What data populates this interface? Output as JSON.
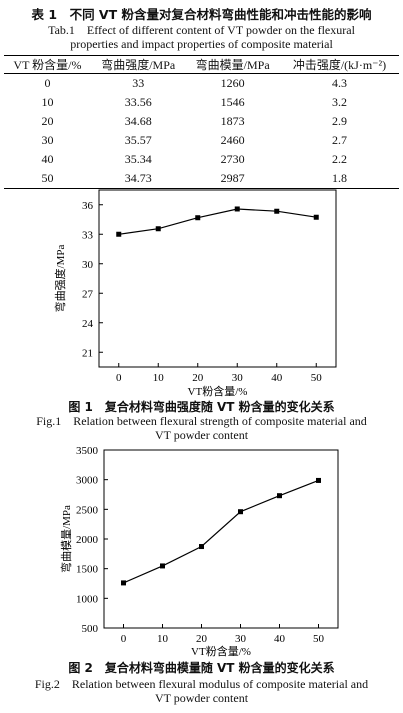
{
  "table": {
    "caption_cn": "表 1　不同 VT 粉含量对复合材料弯曲性能和冲击性能的影响",
    "caption_en_line1": "Tab.1　Effect of different content of VT powder on the flexural",
    "caption_en_line2": "properties and impact properties of composite material",
    "headers": [
      "VT 粉含量/%",
      "弯曲强度/MPa",
      "弯曲模量/MPa",
      "冲击强度/(kJ·m⁻²)"
    ],
    "rows": [
      [
        "0",
        "33",
        "1260",
        "4.3"
      ],
      [
        "10",
        "33.56",
        "1546",
        "3.2"
      ],
      [
        "20",
        "34.68",
        "1873",
        "2.9"
      ],
      [
        "30",
        "35.57",
        "2460",
        "2.7"
      ],
      [
        "40",
        "35.34",
        "2730",
        "2.2"
      ],
      [
        "50",
        "34.73",
        "2987",
        "1.8"
      ]
    ]
  },
  "figure1": {
    "caption_cn": "图 1　复合材料弯曲强度随 VT 粉含量的变化关系",
    "caption_en_line1": "Fig.1　Relation between flexural strength of composite material and",
    "caption_en_line2": "VT powder content"
  },
  "figure2": {
    "caption_cn": "图 2　复合材料弯曲模量随 VT 粉含量的变化关系",
    "caption_en_line1": "Fig.2　Relation between flexural modulus of composite material and",
    "caption_en_line2": "VT powder content"
  },
  "chart_data": [
    {
      "type": "line",
      "xlabel": "VT粉含量/%",
      "ylabel": "弯曲强度/MPa",
      "x": [
        0,
        10,
        20,
        30,
        40,
        50
      ],
      "y": [
        33,
        33.56,
        34.68,
        35.57,
        35.34,
        34.73
      ],
      "xticks": [
        0,
        10,
        20,
        30,
        40,
        50
      ],
      "yticks": [
        21,
        24,
        27,
        30,
        33,
        36
      ],
      "xlim": [
        -5,
        55
      ],
      "ylim": [
        19.5,
        37.5
      ],
      "grid": false,
      "marker": "square"
    },
    {
      "type": "line",
      "xlabel": "VT粉含量/%",
      "ylabel": "弯曲模量/MPa",
      "x": [
        0,
        10,
        20,
        30,
        40,
        50
      ],
      "y": [
        1260,
        1546,
        1873,
        2460,
        2730,
        2987
      ],
      "xticks": [
        0,
        10,
        20,
        30,
        40,
        50
      ],
      "yticks": [
        500,
        1000,
        1500,
        2000,
        2500,
        3000,
        3500
      ],
      "xlim": [
        -5,
        55
      ],
      "ylim": [
        500,
        3500
      ],
      "grid": false,
      "marker": "square"
    }
  ]
}
